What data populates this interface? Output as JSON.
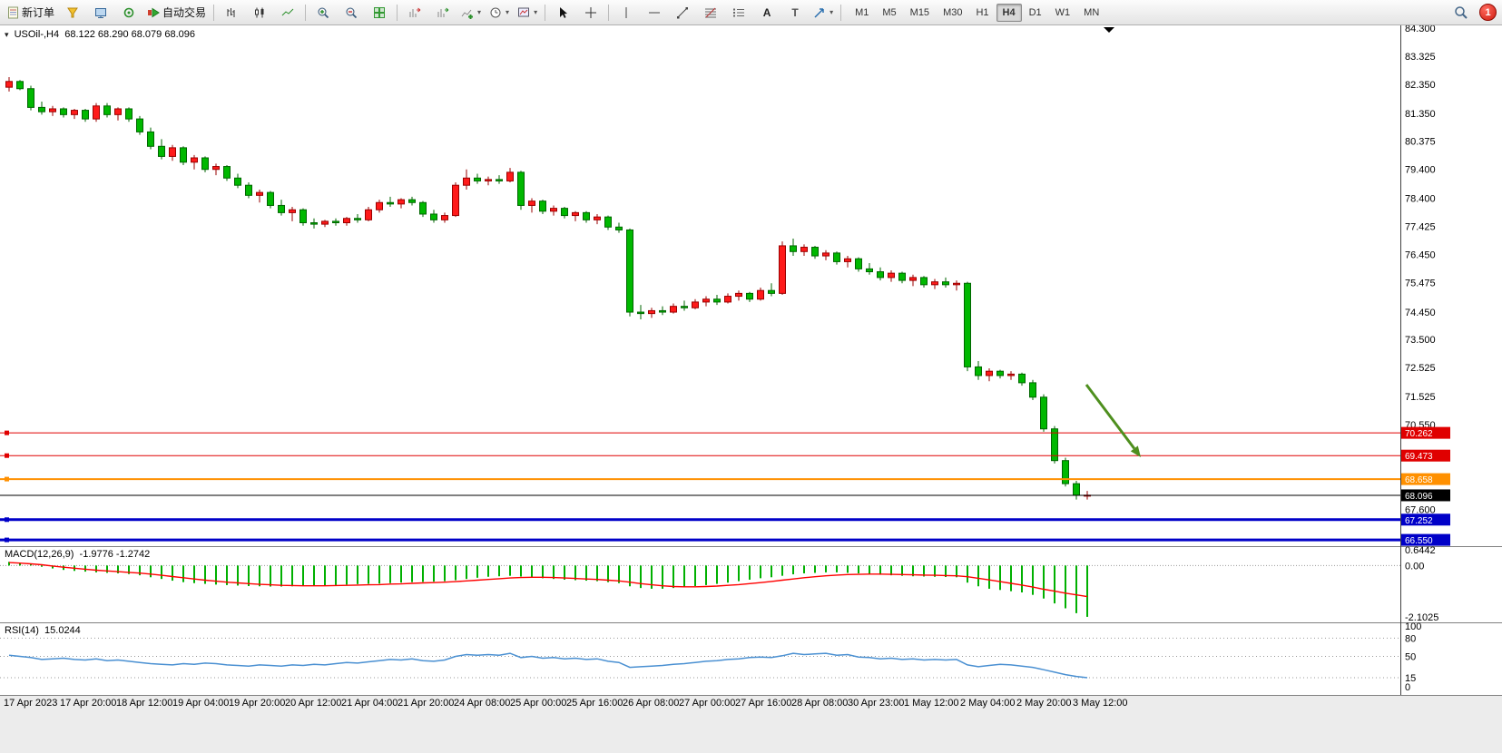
{
  "toolbar": {
    "new_order_label": "新订单",
    "auto_trading_label": "自动交易",
    "timeframes": [
      "M1",
      "M5",
      "M15",
      "M30",
      "H1",
      "H4",
      "D1",
      "W1",
      "MN"
    ],
    "active_timeframe": "H4",
    "badge_count": "1"
  },
  "chart": {
    "symbol_period": "USOil-,H4",
    "ohlc_text": "68.122 68.290 68.079 68.096",
    "macd_label": "MACD(12,26,9)",
    "macd_values": "-1.9776 -1.2742",
    "rsi_label": "RSI(14)",
    "rsi_value": "15.0244",
    "price_scale": [
      84.3,
      83.325,
      82.35,
      81.35,
      80.375,
      79.4,
      78.4,
      77.425,
      76.45,
      75.475,
      74.45,
      73.5,
      72.525,
      71.525,
      70.55,
      67.6
    ],
    "levels": [
      {
        "price": 70.262,
        "color": "#e00000",
        "width": 1
      },
      {
        "price": 69.473,
        "color": "#e00000",
        "width": 1
      },
      {
        "price": 68.658,
        "color": "#ff9000",
        "width": 2
      },
      {
        "price": 67.252,
        "color": "#0000c8",
        "width": 3
      },
      {
        "price": 66.55,
        "color": "#0000c8",
        "width": 3
      }
    ],
    "current_price": {
      "value": 68.096,
      "color": "#000000"
    },
    "macd_scale": [
      "0.6442",
      "0.00",
      "-2.1025"
    ],
    "rsi_scale": [
      100,
      80,
      50,
      15,
      0
    ],
    "rsi_dotted_levels": [
      80,
      50,
      15
    ]
  },
  "chart_data": {
    "type": "candlestick",
    "title": "USOil H4 chart with MACD and RSI",
    "time_labels": [
      "17 Apr 2023",
      "17 Apr 20:00",
      "18 Apr 12:00",
      "19 Apr 04:00",
      "19 Apr 20:00",
      "20 Apr 12:00",
      "21 Apr 04:00",
      "21 Apr 20:00",
      "24 Apr 08:00",
      "25 Apr 00:00",
      "25 Apr 16:00",
      "26 Apr 08:00",
      "27 Apr 00:00",
      "27 Apr 16:00",
      "28 Apr 08:00",
      "30 Apr 23:00",
      "1 May 12:00",
      "2 May 04:00",
      "2 May 20:00",
      "3 May 12:00"
    ],
    "ylim_main": [
      66.3,
      84.39
    ],
    "ylim_macd": [
      -2.1025,
      0.6442
    ],
    "ylim_rsi": [
      0,
      100
    ],
    "candles": [
      [
        82.25,
        82.6,
        82.1,
        82.45
      ],
      [
        82.45,
        82.5,
        82.15,
        82.2
      ],
      [
        82.2,
        82.3,
        81.45,
        81.55
      ],
      [
        81.55,
        81.75,
        81.3,
        81.4
      ],
      [
        81.4,
        81.6,
        81.25,
        81.5
      ],
      [
        81.5,
        81.55,
        81.2,
        81.3
      ],
      [
        81.3,
        81.5,
        81.15,
        81.45
      ],
      [
        81.45,
        81.5,
        81.05,
        81.15
      ],
      [
        81.15,
        81.7,
        81.05,
        81.6
      ],
      [
        81.6,
        81.7,
        81.2,
        81.3
      ],
      [
        81.3,
        81.55,
        81.1,
        81.5
      ],
      [
        81.5,
        81.55,
        81.05,
        81.15
      ],
      [
        81.15,
        81.25,
        80.6,
        80.7
      ],
      [
        80.7,
        80.85,
        80.1,
        80.2
      ],
      [
        80.2,
        80.45,
        79.75,
        79.85
      ],
      [
        79.85,
        80.25,
        79.7,
        80.15
      ],
      [
        80.15,
        80.2,
        79.55,
        79.65
      ],
      [
        79.65,
        79.9,
        79.4,
        79.8
      ],
      [
        79.8,
        79.85,
        79.3,
        79.4
      ],
      [
        79.4,
        79.6,
        79.2,
        79.5
      ],
      [
        79.5,
        79.55,
        79.0,
        79.1
      ],
      [
        79.1,
        79.25,
        78.75,
        78.85
      ],
      [
        78.85,
        78.95,
        78.4,
        78.5
      ],
      [
        78.5,
        78.7,
        78.25,
        78.6
      ],
      [
        78.6,
        78.65,
        78.05,
        78.15
      ],
      [
        78.15,
        78.35,
        77.8,
        77.9
      ],
      [
        77.9,
        78.1,
        77.6,
        78.0
      ],
      [
        78.0,
        78.05,
        77.45,
        77.55
      ],
      [
        77.55,
        77.7,
        77.35,
        77.5
      ],
      [
        77.5,
        77.65,
        77.4,
        77.6
      ],
      [
        77.6,
        77.7,
        77.45,
        77.55
      ],
      [
        77.55,
        77.75,
        77.45,
        77.7
      ],
      [
        77.7,
        77.85,
        77.55,
        77.65
      ],
      [
        77.65,
        78.1,
        77.6,
        78.0
      ],
      [
        78.0,
        78.35,
        77.9,
        78.25
      ],
      [
        78.25,
        78.45,
        78.1,
        78.2
      ],
      [
        78.2,
        78.4,
        78.05,
        78.35
      ],
      [
        78.35,
        78.45,
        78.15,
        78.25
      ],
      [
        78.25,
        78.3,
        77.75,
        77.85
      ],
      [
        77.85,
        78.0,
        77.55,
        77.65
      ],
      [
        77.65,
        77.9,
        77.55,
        77.8
      ],
      [
        77.8,
        78.95,
        77.75,
        78.85
      ],
      [
        78.85,
        79.4,
        78.7,
        79.1
      ],
      [
        79.1,
        79.25,
        78.9,
        79.0
      ],
      [
        79.0,
        79.15,
        78.85,
        79.05
      ],
      [
        79.05,
        79.2,
        78.9,
        79.0
      ],
      [
        79.0,
        79.45,
        78.95,
        79.3
      ],
      [
        79.3,
        79.35,
        78.0,
        78.15
      ],
      [
        78.15,
        78.4,
        77.9,
        78.3
      ],
      [
        78.3,
        78.35,
        77.85,
        77.95
      ],
      [
        77.95,
        78.15,
        77.8,
        78.05
      ],
      [
        78.05,
        78.1,
        77.7,
        77.8
      ],
      [
        77.8,
        77.95,
        77.6,
        77.9
      ],
      [
        77.9,
        77.95,
        77.55,
        77.65
      ],
      [
        77.65,
        77.85,
        77.5,
        77.75
      ],
      [
        77.75,
        77.8,
        77.3,
        77.4
      ],
      [
        77.4,
        77.55,
        77.2,
        77.3
      ],
      [
        77.3,
        77.35,
        74.3,
        74.45
      ],
      [
        74.45,
        74.7,
        74.2,
        74.4
      ],
      [
        74.4,
        74.6,
        74.25,
        74.5
      ],
      [
        74.5,
        74.65,
        74.35,
        74.45
      ],
      [
        74.45,
        74.75,
        74.4,
        74.65
      ],
      [
        74.65,
        74.85,
        74.5,
        74.6
      ],
      [
        74.6,
        74.9,
        74.55,
        74.8
      ],
      [
        74.8,
        75.0,
        74.65,
        74.9
      ],
      [
        74.9,
        75.05,
        74.7,
        74.8
      ],
      [
        74.8,
        75.1,
        74.75,
        75.0
      ],
      [
        75.0,
        75.2,
        74.85,
        75.1
      ],
      [
        75.1,
        75.15,
        74.8,
        74.9
      ],
      [
        74.9,
        75.3,
        74.85,
        75.2
      ],
      [
        75.2,
        75.45,
        75.0,
        75.1
      ],
      [
        75.1,
        76.9,
        75.05,
        76.75
      ],
      [
        76.75,
        77.0,
        76.4,
        76.55
      ],
      [
        76.55,
        76.8,
        76.4,
        76.7
      ],
      [
        76.7,
        76.75,
        76.3,
        76.4
      ],
      [
        76.4,
        76.6,
        76.25,
        76.5
      ],
      [
        76.5,
        76.55,
        76.1,
        76.2
      ],
      [
        76.2,
        76.4,
        76.0,
        76.3
      ],
      [
        76.3,
        76.35,
        75.85,
        75.95
      ],
      [
        75.95,
        76.15,
        75.75,
        75.85
      ],
      [
        75.85,
        76.0,
        75.55,
        75.65
      ],
      [
        75.65,
        75.9,
        75.5,
        75.8
      ],
      [
        75.8,
        75.85,
        75.45,
        75.55
      ],
      [
        75.55,
        75.75,
        75.35,
        75.65
      ],
      [
        75.65,
        75.7,
        75.3,
        75.4
      ],
      [
        75.4,
        75.6,
        75.25,
        75.5
      ],
      [
        75.5,
        75.65,
        75.3,
        75.4
      ],
      [
        75.4,
        75.55,
        75.2,
        75.45
      ],
      [
        75.45,
        75.5,
        72.4,
        72.55
      ],
      [
        72.55,
        72.75,
        72.1,
        72.25
      ],
      [
        72.25,
        72.5,
        72.05,
        72.4
      ],
      [
        72.4,
        72.45,
        72.15,
        72.25
      ],
      [
        72.25,
        72.4,
        72.1,
        72.3
      ],
      [
        72.3,
        72.35,
        71.9,
        72.0
      ],
      [
        72.0,
        72.1,
        71.4,
        71.5
      ],
      [
        71.5,
        71.6,
        70.3,
        70.4
      ],
      [
        70.4,
        70.5,
        69.2,
        69.3
      ],
      [
        69.3,
        69.4,
        68.4,
        68.5
      ],
      [
        68.5,
        68.6,
        67.95,
        68.1
      ],
      [
        68.1,
        68.25,
        67.95,
        68.1
      ]
    ],
    "macd_histogram": [
      0.15,
      0.1,
      0.05,
      -0.05,
      -0.12,
      -0.18,
      -0.22,
      -0.25,
      -0.28,
      -0.3,
      -0.32,
      -0.35,
      -0.4,
      -0.48,
      -0.55,
      -0.62,
      -0.68,
      -0.72,
      -0.75,
      -0.78,
      -0.8,
      -0.82,
      -0.84,
      -0.85,
      -0.86,
      -0.86,
      -0.85,
      -0.84,
      -0.83,
      -0.82,
      -0.8,
      -0.78,
      -0.76,
      -0.75,
      -0.74,
      -0.72,
      -0.7,
      -0.68,
      -0.67,
      -0.66,
      -0.64,
      -0.6,
      -0.55,
      -0.5,
      -0.46,
      -0.44,
      -0.42,
      -0.45,
      -0.48,
      -0.52,
      -0.55,
      -0.58,
      -0.6,
      -0.62,
      -0.64,
      -0.68,
      -0.72,
      -0.85,
      -0.92,
      -0.95,
      -0.95,
      -0.92,
      -0.88,
      -0.84,
      -0.8,
      -0.75,
      -0.7,
      -0.64,
      -0.58,
      -0.52,
      -0.48,
      -0.42,
      -0.36,
      -0.32,
      -0.3,
      -0.28,
      -0.28,
      -0.3,
      -0.32,
      -0.35,
      -0.38,
      -0.4,
      -0.42,
      -0.44,
      -0.45,
      -0.46,
      -0.47,
      -0.48,
      -0.7,
      -0.85,
      -0.95,
      -1.0,
      -1.05,
      -1.1,
      -1.2,
      -1.35,
      -1.55,
      -1.75,
      -1.95,
      -2.1
    ],
    "macd_signal": [
      0.12,
      0.1,
      0.07,
      0.03,
      -0.02,
      -0.07,
      -0.11,
      -0.15,
      -0.19,
      -0.22,
      -0.25,
      -0.28,
      -0.31,
      -0.35,
      -0.4,
      -0.45,
      -0.5,
      -0.55,
      -0.6,
      -0.64,
      -0.68,
      -0.71,
      -0.74,
      -0.77,
      -0.79,
      -0.81,
      -0.82,
      -0.83,
      -0.83,
      -0.83,
      -0.82,
      -0.81,
      -0.8,
      -0.79,
      -0.78,
      -0.76,
      -0.75,
      -0.73,
      -0.71,
      -0.7,
      -0.68,
      -0.66,
      -0.63,
      -0.6,
      -0.57,
      -0.54,
      -0.51,
      -0.49,
      -0.48,
      -0.48,
      -0.49,
      -0.51,
      -0.53,
      -0.55,
      -0.57,
      -0.6,
      -0.63,
      -0.68,
      -0.74,
      -0.79,
      -0.83,
      -0.86,
      -0.87,
      -0.87,
      -0.86,
      -0.84,
      -0.81,
      -0.78,
      -0.74,
      -0.7,
      -0.65,
      -0.6,
      -0.55,
      -0.5,
      -0.46,
      -0.42,
      -0.39,
      -0.37,
      -0.36,
      -0.35,
      -0.35,
      -0.36,
      -0.37,
      -0.38,
      -0.39,
      -0.4,
      -0.41,
      -0.42,
      -0.46,
      -0.52,
      -0.59,
      -0.66,
      -0.73,
      -0.8,
      -0.88,
      -0.97,
      -1.05,
      -1.13,
      -1.2,
      -1.27
    ],
    "rsi": [
      52,
      50,
      48,
      45,
      46,
      47,
      45,
      44,
      46,
      43,
      44,
      42,
      40,
      38,
      37,
      36,
      38,
      37,
      39,
      38,
      36,
      35,
      34,
      36,
      35,
      34,
      36,
      35,
      37,
      36,
      38,
      40,
      39,
      41,
      43,
      45,
      44,
      46,
      43,
      42,
      44,
      50,
      53,
      52,
      53,
      52,
      55,
      48,
      50,
      47,
      48,
      46,
      47,
      45,
      46,
      42,
      40,
      32,
      33,
      34,
      35,
      37,
      38,
      40,
      42,
      43,
      45,
      46,
      48,
      49,
      48,
      51,
      55,
      53,
      54,
      55,
      52,
      53,
      49,
      48,
      46,
      47,
      45,
      46,
      44,
      45,
      44,
      45,
      36,
      33,
      35,
      37,
      36,
      34,
      32,
      28,
      24,
      20,
      17,
      15.0
    ],
    "annotations": [
      {
        "type": "arrow",
        "color": "#4e8f1e",
        "from": [
          1197,
          396
        ],
        "to": [
          1257,
          476
        ]
      }
    ],
    "colors": {
      "up": "#ff1a1a",
      "up_stroke": "#990000",
      "down": "#00b800",
      "down_stroke": "#006600",
      "macd_hist": "#00b000",
      "macd_signal": "#ff0000",
      "rsi_line": "#4a90d2",
      "arrow": "#4e8f1e"
    }
  }
}
